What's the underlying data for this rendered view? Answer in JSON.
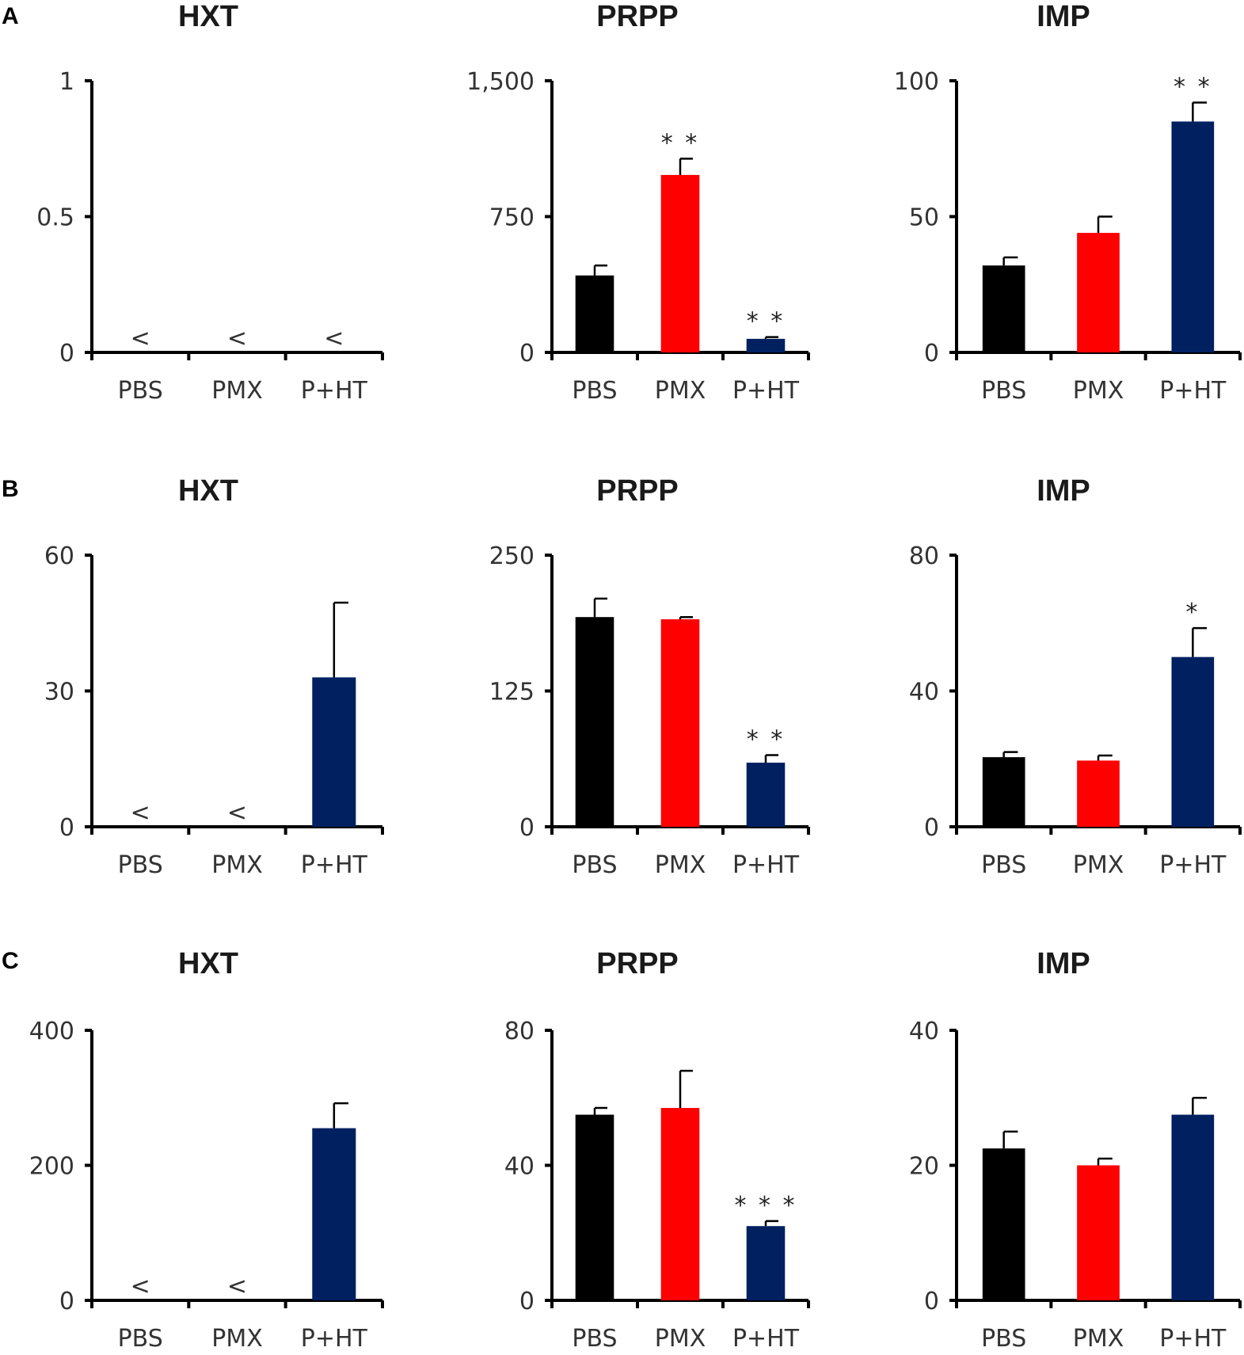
{
  "figure": {
    "panels": [
      "A",
      "B",
      "C"
    ]
  },
  "colors": {
    "PBS": "#000000",
    "PMX": "#ff0000",
    "P+HT": "#002060"
  },
  "chart_data": [
    {
      "panel": "A",
      "type": "bar",
      "title": "HXT",
      "categories": [
        "PBS",
        "PMX",
        "P+HT"
      ],
      "values": [
        null,
        null,
        null
      ],
      "errors": [
        0,
        0,
        0
      ],
      "below_detection": [
        true,
        true,
        true
      ],
      "sig": [
        "",
        "",
        ""
      ],
      "yticks": [
        "0",
        "0.5",
        "1"
      ],
      "ylim": [
        0,
        1
      ]
    },
    {
      "panel": "A",
      "type": "bar",
      "title": "PRPP",
      "categories": [
        "PBS",
        "PMX",
        "P+HT"
      ],
      "values": [
        425,
        980,
        75
      ],
      "errors": [
        55,
        90,
        10
      ],
      "below_detection": [
        false,
        false,
        false
      ],
      "sig": [
        "",
        "**",
        "**"
      ],
      "yticks": [
        "0",
        "750",
        "1,500"
      ],
      "ylim": [
        0,
        1500
      ]
    },
    {
      "panel": "A",
      "type": "bar",
      "title": "IMP",
      "categories": [
        "PBS",
        "PMX",
        "P+HT"
      ],
      "values": [
        32,
        44,
        85
      ],
      "errors": [
        3,
        6,
        7
      ],
      "below_detection": [
        false,
        false,
        false
      ],
      "sig": [
        "",
        "",
        "**"
      ],
      "yticks": [
        "0",
        "50",
        "100"
      ],
      "ylim": [
        0,
        100
      ]
    },
    {
      "panel": "B",
      "type": "bar",
      "title": "HXT",
      "categories": [
        "PBS",
        "PMX",
        "P+HT"
      ],
      "values": [
        null,
        null,
        33
      ],
      "errors": [
        0,
        0,
        16.5
      ],
      "below_detection": [
        true,
        true,
        false
      ],
      "sig": [
        "",
        "",
        ""
      ],
      "yticks": [
        "0",
        "30",
        "60"
      ],
      "ylim": [
        0,
        60
      ]
    },
    {
      "panel": "B",
      "type": "bar",
      "title": "PRPP",
      "categories": [
        "PBS",
        "PMX",
        "P+HT"
      ],
      "values": [
        193,
        191,
        59
      ],
      "errors": [
        17,
        2,
        7
      ],
      "below_detection": [
        false,
        false,
        false
      ],
      "sig": [
        "",
        "",
        "**"
      ],
      "yticks": [
        "0",
        "125",
        "250"
      ],
      "ylim": [
        0,
        250
      ]
    },
    {
      "panel": "B",
      "type": "bar",
      "title": "IMP",
      "categories": [
        "PBS",
        "PMX",
        "P+HT"
      ],
      "values": [
        20.5,
        19.5,
        50
      ],
      "errors": [
        1.5,
        1.5,
        8.5
      ],
      "below_detection": [
        false,
        false,
        false
      ],
      "sig": [
        "",
        "",
        "*"
      ],
      "yticks": [
        "0",
        "40",
        "80"
      ],
      "ylim": [
        0,
        80
      ]
    },
    {
      "panel": "C",
      "type": "bar",
      "title": "HXT",
      "categories": [
        "PBS",
        "PMX",
        "P+HT"
      ],
      "values": [
        null,
        null,
        255
      ],
      "errors": [
        0,
        0,
        37
      ],
      "below_detection": [
        true,
        true,
        false
      ],
      "sig": [
        "",
        "",
        ""
      ],
      "yticks": [
        "0",
        "200",
        "400"
      ],
      "ylim": [
        0,
        400
      ]
    },
    {
      "panel": "C",
      "type": "bar",
      "title": "PRPP",
      "categories": [
        "PBS",
        "PMX",
        "P+HT"
      ],
      "values": [
        55,
        57,
        22
      ],
      "errors": [
        2,
        11,
        1.5
      ],
      "below_detection": [
        false,
        false,
        false
      ],
      "sig": [
        "",
        "",
        "***"
      ],
      "yticks": [
        "0",
        "40",
        "80"
      ],
      "ylim": [
        0,
        80
      ]
    },
    {
      "panel": "C",
      "type": "bar",
      "title": "IMP",
      "categories": [
        "PBS",
        "PMX",
        "P+HT"
      ],
      "values": [
        22.5,
        20,
        27.5
      ],
      "errors": [
        2.5,
        1,
        2.5
      ],
      "below_detection": [
        false,
        false,
        false
      ],
      "sig": [
        "",
        "",
        ""
      ],
      "yticks": [
        "0",
        "20",
        "40"
      ],
      "ylim": [
        0,
        40
      ]
    }
  ],
  "below_detection_symbol": "<"
}
